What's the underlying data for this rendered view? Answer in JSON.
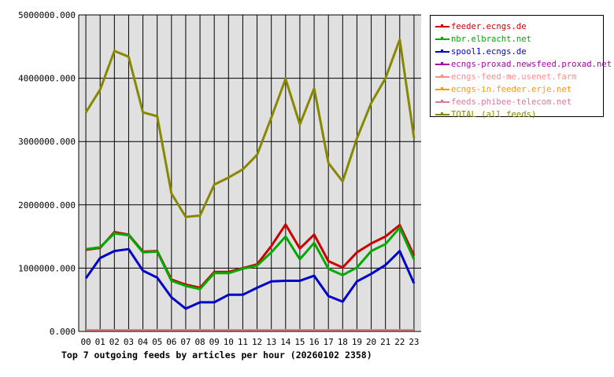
{
  "chart_data": {
    "type": "line",
    "title": "Top 7 outgoing feeds by articles per hour (20260102 2358)",
    "xlabel": "",
    "ylabel": "",
    "ylim": [
      0,
      5000000
    ],
    "yticks": [
      0,
      1000000,
      2000000,
      3000000,
      4000000,
      5000000
    ],
    "ytick_labels": [
      "0.000",
      "1000000.000",
      "2000000.000",
      "3000000.000",
      "4000000.000",
      "5000000.000"
    ],
    "grid": true,
    "legend_position": "right",
    "categories": [
      "00",
      "01",
      "02",
      "03",
      "04",
      "05",
      "06",
      "07",
      "08",
      "09",
      "10",
      "11",
      "12",
      "13",
      "14",
      "15",
      "16",
      "17",
      "18",
      "19",
      "20",
      "21",
      "22",
      "23"
    ],
    "series": [
      {
        "name": "feeder.ecngs.de",
        "color": "#cc0000",
        "width": 3,
        "values": [
          1290000,
          1320000,
          1570000,
          1530000,
          1260000,
          1270000,
          820000,
          740000,
          690000,
          940000,
          940000,
          1000000,
          1060000,
          1350000,
          1690000,
          1310000,
          1530000,
          1110000,
          1010000,
          1250000,
          1390000,
          1500000,
          1680000,
          1200000
        ]
      },
      {
        "name": "nbr.elbracht.net",
        "color": "#00aa00",
        "width": 3,
        "values": [
          1300000,
          1330000,
          1550000,
          1520000,
          1250000,
          1260000,
          800000,
          720000,
          670000,
          920000,
          920000,
          990000,
          1040000,
          1250000,
          1500000,
          1140000,
          1400000,
          990000,
          890000,
          1010000,
          1270000,
          1380000,
          1640000,
          1140000
        ]
      },
      {
        "name": "spool1.ecngs.de",
        "color": "#0000cc",
        "width": 3,
        "values": [
          840000,
          1160000,
          1270000,
          1300000,
          960000,
          850000,
          540000,
          360000,
          460000,
          460000,
          580000,
          580000,
          690000,
          790000,
          800000,
          800000,
          880000,
          560000,
          470000,
          790000,
          910000,
          1050000,
          1270000,
          760000
        ]
      },
      {
        "name": "ecngs-proxad.newsfeed.proxad.net",
        "color": "#aa00aa",
        "width": 2,
        "values": [
          20000,
          20000,
          20000,
          20000,
          20000,
          20000,
          20000,
          20000,
          20000,
          20000,
          20000,
          20000,
          20000,
          20000,
          20000,
          20000,
          20000,
          20000,
          20000,
          20000,
          20000,
          20000,
          20000,
          20000
        ]
      },
      {
        "name": "ecngs-feed-me.usenet.farm",
        "color": "#ff8c8c",
        "width": 2,
        "values": [
          20000,
          20000,
          20000,
          20000,
          20000,
          20000,
          20000,
          20000,
          20000,
          20000,
          20000,
          20000,
          20000,
          20000,
          20000,
          20000,
          20000,
          20000,
          20000,
          20000,
          20000,
          20000,
          20000,
          20000
        ]
      },
      {
        "name": "ecngs-in.feeder.erje.net",
        "color": "#ff9900",
        "width": 2,
        "values": [
          20000,
          20000,
          20000,
          20000,
          20000,
          20000,
          20000,
          20000,
          20000,
          20000,
          20000,
          20000,
          20000,
          20000,
          20000,
          20000,
          20000,
          20000,
          20000,
          20000,
          20000,
          20000,
          20000,
          20000
        ]
      },
      {
        "name": "feeds.phibee-telecom.net",
        "color": "#dd7799",
        "width": 2,
        "values": [
          25000,
          25000,
          25000,
          25000,
          25000,
          25000,
          25000,
          25000,
          25000,
          25000,
          25000,
          25000,
          25000,
          25000,
          25000,
          25000,
          25000,
          25000,
          25000,
          25000,
          25000,
          25000,
          25000,
          25000
        ]
      },
      {
        "name": "TOTAL (all feeds)",
        "color": "#888800",
        "width": 3,
        "values": [
          3460000,
          3820000,
          4430000,
          4340000,
          3460000,
          3400000,
          2180000,
          1810000,
          1830000,
          2320000,
          2430000,
          2560000,
          2790000,
          3380000,
          3990000,
          3270000,
          3840000,
          2660000,
          2370000,
          3050000,
          3610000,
          4000000,
          4610000,
          3060000
        ]
      }
    ]
  }
}
